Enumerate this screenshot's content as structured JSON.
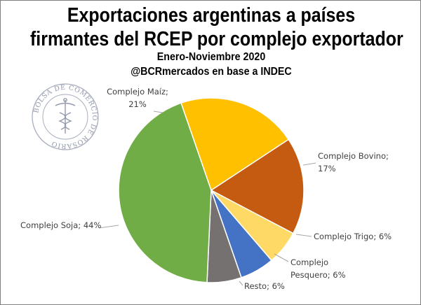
{
  "title_line1": "Exportaciones argentinas  a países",
  "title_line2": "firmantes del RCEP por complejo exportador",
  "subtitle_line1": "Enero-Noviembre 2020",
  "subtitle_line2": "@BCRmercados en base a INDEC",
  "logo": {
    "text": "BOLSA DE COMERCIO DE ROSARIO",
    "icon": "caduceus-seal-icon"
  },
  "chart_data": {
    "type": "pie",
    "title": "Exportaciones argentinas  a países firmantes del RCEP por complejo exportador",
    "subtitle": "Enero-Noviembre 2020",
    "slices": [
      {
        "name": "Complejo Maíz",
        "value": 21,
        "color": "#FFC000",
        "label_lines": [
          "Complejo Maíz;",
          "21%"
        ]
      },
      {
        "name": "Complejo Bovino",
        "value": 17,
        "color": "#C55A11",
        "label_lines": [
          "Complejo Bovino;",
          "17%"
        ]
      },
      {
        "name": "Complejo Trigo",
        "value": 6,
        "color": "#FFD966",
        "label_lines": [
          "Complejo Trigo; 6%"
        ]
      },
      {
        "name": "Complejo Pesquero",
        "value": 6,
        "color": "#4472C4",
        "label_lines": [
          "Complejo",
          "Pesquero; 6%"
        ]
      },
      {
        "name": "Resto",
        "value": 6,
        "color": "#767171",
        "label_lines": [
          "Resto; 6%"
        ]
      },
      {
        "name": "Complejo Soja",
        "value": 44,
        "color": "#70AD47",
        "label_lines": [
          "Complejo Soja; 44%"
        ]
      }
    ],
    "start_angle_deg": -19,
    "legend": "none",
    "data_labels": "outside with leader lines"
  }
}
